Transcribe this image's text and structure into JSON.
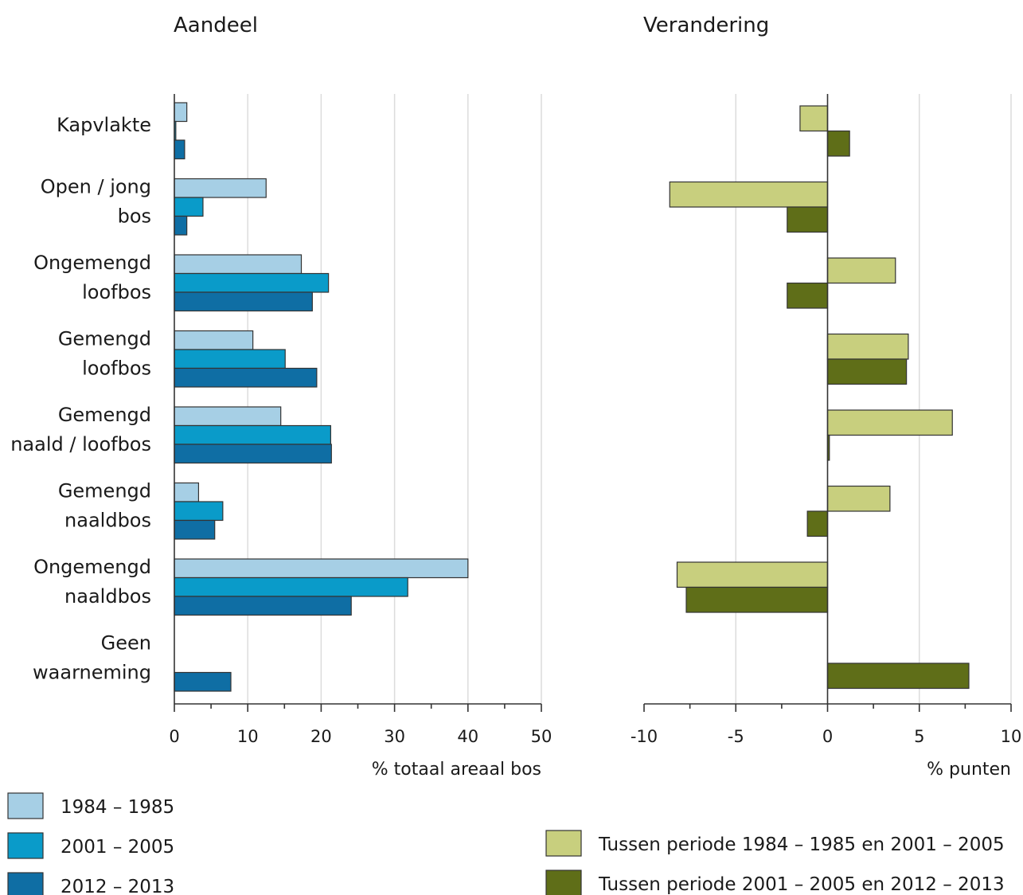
{
  "chart_data": [
    {
      "type": "bar",
      "orientation": "horizontal",
      "title": "Aandeel",
      "xlabel": "% totaal areaal bos",
      "xlim": [
        0,
        50
      ],
      "xticks": [
        "0",
        "10",
        "20",
        "30",
        "40",
        "50"
      ],
      "grid": true,
      "categories": [
        [
          "Kapvlakte"
        ],
        [
          "Open / jong",
          "bos"
        ],
        [
          "Ongemengd",
          "loofbos"
        ],
        [
          "Gemengd",
          "loofbos"
        ],
        [
          "Gemengd",
          "naald / loofbos"
        ],
        [
          "Gemengd",
          "naaldbos"
        ],
        [
          "Ongemengd",
          "naaldbos"
        ],
        [
          "Geen",
          "waarneming"
        ]
      ],
      "series": [
        {
          "name": "1984 – 1985",
          "color": "#a6cfe5",
          "values": [
            1.7,
            12.5,
            17.3,
            10.7,
            14.5,
            3.3,
            40.0,
            0
          ]
        },
        {
          "name": "2001 – 2005",
          "color": "#0a9bc9",
          "values": [
            0.2,
            3.9,
            21.0,
            15.1,
            21.3,
            6.6,
            31.8,
            0
          ]
        },
        {
          "name": "2012 – 2013",
          "color": "#0f6ea4",
          "values": [
            1.4,
            1.7,
            18.8,
            19.4,
            21.4,
            5.5,
            24.1,
            7.7
          ]
        }
      ],
      "legend_position": "bottom-left"
    },
    {
      "type": "bar",
      "orientation": "horizontal",
      "title": "Verandering",
      "xlabel": "% punten",
      "xlim": [
        -10,
        10
      ],
      "xticks": [
        "-10",
        "-5",
        "0",
        "5",
        "10"
      ],
      "grid": true,
      "series": [
        {
          "name": "Tussen periode 1984 – 1985 en 2001 – 2005",
          "color": "#c8cf7e",
          "values": [
            -1.5,
            -8.6,
            3.7,
            4.4,
            6.8,
            3.4,
            -8.2,
            0
          ]
        },
        {
          "name": "Tussen periode 2001 – 2005 en 2012 – 2013",
          "color": "#5f6e18",
          "values": [
            1.2,
            -2.2,
            -2.2,
            4.3,
            0.1,
            -1.1,
            -7.7,
            7.7
          ]
        }
      ],
      "legend_position": "bottom-right"
    }
  ]
}
